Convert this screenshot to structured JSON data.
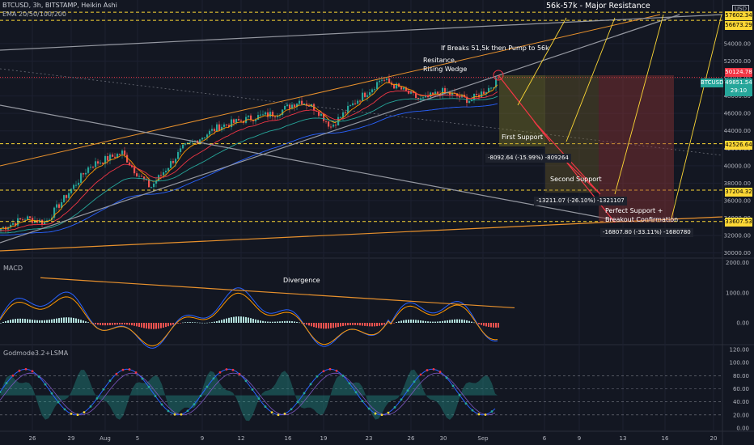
{
  "header": {
    "title": "BTCUSD, 3h, BITSTAMP, Heikin Ashi",
    "indicator": "EMA 20/50/100/200"
  },
  "panes": {
    "macd_label": "MACD",
    "godmode_label": "Godmode3.2+LSMA"
  },
  "currency": "USD",
  "symbol_tag": "BTCUSD",
  "annotations": {
    "major_resistance": "56k-57k - Major Resistance",
    "breakout": "If Breaks 51,5k then Pump to 56k",
    "wedge": "Resitance,\nRising Wedge",
    "first_support": "First Support",
    "second_support": "Second Support",
    "perfect_support": "Perfect Support +\nBreakout Confirmation",
    "measure1": "-8092.64 (-15.99%) -809264",
    "measure2": "-13211.07 (-26.10%) -1321107",
    "measure3": "-16807.80 (-33.11%) -1680780",
    "divergence": "Divergence"
  },
  "price_tags": {
    "p57602": "57602.34",
    "p56673": "56673.29",
    "p50124": "50124.78",
    "p49851": "49851.54",
    "countdown": "29:10",
    "p42526": "42526.64",
    "p37204": "37204.32",
    "p33607": "33607.53"
  },
  "colors": {
    "background": "#131722",
    "up": "#26a69a",
    "down": "#ef5350",
    "ema20": "#ff9800",
    "ema50": "#f23645",
    "ema100": "#26a69a",
    "ema200": "#2962ff",
    "support_line": "#fdd835",
    "trend_orange": "#e8912d",
    "grey_line": "#9598a1",
    "red_zone": "#7b2d2d"
  },
  "chart_data": [
    {
      "type": "candlestick",
      "title": "BTCUSD, 3h, BITSTAMP, Heikin Ashi",
      "x_ticks": [
        "26",
        "29",
        "Aug",
        "5",
        "9",
        "12",
        "16",
        "19",
        "23",
        "26",
        "30",
        "Sep",
        "6",
        "9",
        "13",
        "16",
        "20"
      ],
      "y_ticks": [
        30000,
        32000,
        34000,
        36000,
        38000,
        40000,
        42000,
        44000,
        46000,
        48000,
        50000,
        52000,
        54000
      ],
      "ylim": [
        29500,
        59000
      ],
      "close_anchors": [
        [
          "26",
          34000
        ],
        [
          "27",
          33500
        ],
        [
          "29",
          40000
        ],
        [
          "31",
          41500
        ],
        [
          "Aug 2",
          39500
        ],
        [
          "Aug 4",
          37500
        ],
        [
          "Aug 6",
          42000
        ],
        [
          "Aug 8",
          44500
        ],
        [
          "Aug 10",
          45500
        ],
        [
          "Aug 12",
          46000
        ],
        [
          "Aug 14",
          47500
        ],
        [
          "Aug 16",
          46500
        ],
        [
          "Aug 18",
          44500
        ],
        [
          "Aug 20",
          47500
        ],
        [
          "Aug 22",
          49000
        ],
        [
          "Aug 23",
          50000
        ],
        [
          "Aug 25",
          49000
        ],
        [
          "Aug 27",
          47500
        ],
        [
          "Aug 29",
          48500
        ],
        [
          "Aug 31",
          47500
        ],
        [
          "Sep 1",
          49000
        ],
        [
          "Sep 2",
          50000
        ]
      ],
      "horizontal_levels": [
        57602.34,
        56673.29,
        50124.78,
        42526.64,
        37204.32,
        33607.53
      ],
      "last_price": 49851.54,
      "emas": [
        "EMA 20",
        "EMA 50",
        "EMA 100",
        "EMA 200"
      ]
    },
    {
      "type": "line",
      "title": "MACD",
      "y_ticks": [
        0.0,
        1000.0,
        2000.0
      ],
      "ylim": [
        -700,
        2100
      ],
      "series": [
        {
          "name": "MACD"
        },
        {
          "name": "Signal"
        },
        {
          "name": "Histogram"
        }
      ]
    },
    {
      "type": "line",
      "title": "Godmode3.2+LSMA",
      "y_ticks": [
        0.0,
        20.0,
        40.0,
        60.0,
        80.0,
        100.0,
        120.0
      ],
      "ylim": [
        -5,
        125
      ],
      "levels": [
        20,
        40,
        60,
        80
      ]
    }
  ]
}
